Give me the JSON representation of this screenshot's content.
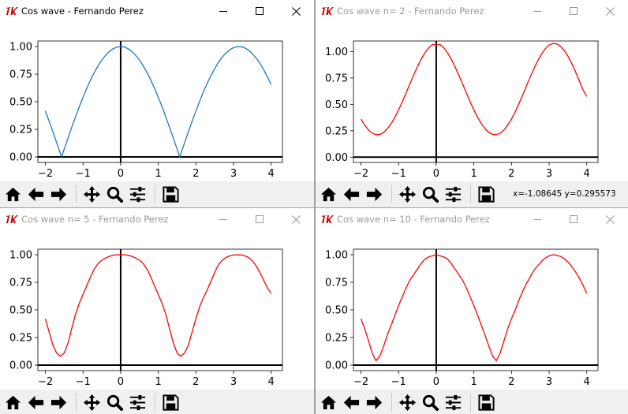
{
  "windows": [
    {
      "id": "w1",
      "title": "Cos wave - Fernando Perez",
      "active": true,
      "line_color": "#1f77b4",
      "coords": "",
      "chart_data": {
        "type": "line",
        "function": "|cos(x)|",
        "x": [
          -2.0,
          -1.9,
          -1.8,
          -1.7,
          -1.6,
          -1.5708,
          -1.5,
          -1.4,
          -1.3,
          -1.2,
          -1.1,
          -1.0,
          -0.9,
          -0.8,
          -0.7,
          -0.6,
          -0.5,
          -0.4,
          -0.3,
          -0.2,
          -0.1,
          0.0,
          0.1,
          0.2,
          0.3,
          0.4,
          0.5,
          0.6,
          0.7,
          0.8,
          0.9,
          1.0,
          1.1,
          1.2,
          1.3,
          1.4,
          1.5,
          1.5708,
          1.6,
          1.7,
          1.8,
          1.9,
          2.0,
          2.1,
          2.2,
          2.3,
          2.4,
          2.5,
          2.6,
          2.7,
          2.8,
          2.9,
          3.0,
          3.1,
          3.2,
          3.3,
          3.4,
          3.5,
          3.6,
          3.7,
          3.8,
          3.9,
          4.0
        ],
        "y": [
          0.416,
          0.323,
          0.227,
          0.129,
          0.029,
          0.0,
          0.071,
          0.17,
          0.267,
          0.362,
          0.454,
          0.54,
          0.622,
          0.697,
          0.765,
          0.825,
          0.878,
          0.921,
          0.955,
          0.98,
          0.995,
          1.0,
          0.995,
          0.98,
          0.955,
          0.921,
          0.878,
          0.825,
          0.765,
          0.697,
          0.622,
          0.54,
          0.454,
          0.362,
          0.267,
          0.17,
          0.071,
          0.0,
          0.029,
          0.129,
          0.227,
          0.323,
          0.416,
          0.505,
          0.589,
          0.666,
          0.737,
          0.801,
          0.857,
          0.904,
          0.942,
          0.971,
          0.99,
          0.999,
          0.998,
          0.987,
          0.967,
          0.936,
          0.897,
          0.848,
          0.791,
          0.726,
          0.654
        ],
        "xlim": [
          -2.2,
          4.3
        ],
        "ylim": [
          -0.05,
          1.05
        ],
        "xticks": [
          -2,
          -1,
          0,
          1,
          2,
          3,
          4
        ],
        "yticks": [
          0.0,
          0.25,
          0.5,
          0.75,
          1.0
        ],
        "xtick_labels": [
          "−2",
          "−1",
          "0",
          "1",
          "2",
          "3",
          "4"
        ],
        "ytick_labels": [
          "0.00",
          "0.25",
          "0.50",
          "0.75",
          "1.00"
        ]
      }
    },
    {
      "id": "w2",
      "title": "Cos wave n= 2 - Fernando Perez",
      "active": false,
      "line_color": "#ff0000",
      "coords": "x=-1.08645     y=0.295573",
      "chart_data": {
        "type": "line",
        "function": "Fourier series of |cos(x)|, n=2",
        "x": [
          -2.0,
          -1.9,
          -1.8,
          -1.7,
          -1.6,
          -1.5,
          -1.4,
          -1.3,
          -1.2,
          -1.1,
          -1.0,
          -0.9,
          -0.8,
          -0.7,
          -0.6,
          -0.5,
          -0.4,
          -0.3,
          -0.2,
          -0.1,
          0.0,
          0.1,
          0.2,
          0.3,
          0.4,
          0.5,
          0.6,
          0.7,
          0.8,
          0.9,
          1.0,
          1.1,
          1.2,
          1.3,
          1.4,
          1.5,
          1.6,
          1.7,
          1.8,
          1.9,
          2.0,
          2.1,
          2.2,
          2.3,
          2.4,
          2.5,
          2.6,
          2.7,
          2.8,
          2.9,
          3.0,
          3.1,
          3.2,
          3.3,
          3.4,
          3.5,
          3.6,
          3.7,
          3.8,
          3.9,
          4.0
        ],
        "y": [
          0.36,
          0.303,
          0.257,
          0.227,
          0.213,
          0.215,
          0.234,
          0.268,
          0.316,
          0.377,
          0.448,
          0.526,
          0.609,
          0.694,
          0.777,
          0.856,
          0.928,
          0.989,
          1.036,
          1.067,
          1.061,
          1.067,
          1.036,
          0.989,
          0.928,
          0.856,
          0.777,
          0.694,
          0.609,
          0.526,
          0.448,
          0.377,
          0.316,
          0.268,
          0.234,
          0.215,
          0.213,
          0.227,
          0.257,
          0.303,
          0.36,
          0.43,
          0.508,
          0.591,
          0.677,
          0.761,
          0.841,
          0.914,
          0.977,
          1.027,
          1.061,
          1.076,
          1.073,
          1.051,
          1.012,
          0.957,
          0.889,
          0.81,
          0.726,
          0.639,
          0.575
        ],
        "xlim": [
          -2.2,
          4.3
        ],
        "ylim": [
          -0.05,
          1.1
        ],
        "xticks": [
          -2,
          -1,
          0,
          1,
          2,
          3,
          4
        ],
        "yticks": [
          0.0,
          0.25,
          0.5,
          0.75,
          1.0
        ],
        "xtick_labels": [
          "−2",
          "−1",
          "0",
          "1",
          "2",
          "3",
          "4"
        ],
        "ytick_labels": [
          "0.00",
          "0.25",
          "0.50",
          "0.75",
          "1.00"
        ]
      }
    },
    {
      "id": "w3",
      "title": "Cos wave n= 5 - Fernando Perez",
      "active": false,
      "line_color": "#ff0000",
      "coords": "",
      "chart_data": {
        "type": "line",
        "function": "Fourier series of |cos(x)|, n=5",
        "x": [
          -2.0,
          -1.9,
          -1.8,
          -1.7,
          -1.6,
          -1.5,
          -1.4,
          -1.3,
          -1.2,
          -1.1,
          -1.0,
          -0.9,
          -0.8,
          -0.7,
          -0.6,
          -0.5,
          -0.4,
          -0.3,
          -0.2,
          -0.1,
          0.0,
          0.1,
          0.2,
          0.3,
          0.4,
          0.5,
          0.6,
          0.7,
          0.8,
          0.9,
          1.0,
          1.1,
          1.2,
          1.3,
          1.4,
          1.5,
          1.6,
          1.7,
          1.8,
          1.9,
          2.0,
          2.1,
          2.2,
          2.3,
          2.4,
          2.5,
          2.6,
          2.7,
          2.8,
          2.9,
          3.0,
          3.1,
          3.2,
          3.3,
          3.4,
          3.5,
          3.6,
          3.7,
          3.8,
          3.9,
          4.0
        ],
        "y": [
          0.42,
          0.3,
          0.18,
          0.11,
          0.08,
          0.11,
          0.2,
          0.33,
          0.46,
          0.56,
          0.64,
          0.72,
          0.8,
          0.87,
          0.92,
          0.95,
          0.97,
          0.985,
          0.995,
          1.0,
          0.998,
          1.0,
          0.995,
          0.985,
          0.97,
          0.95,
          0.92,
          0.87,
          0.8,
          0.72,
          0.64,
          0.56,
          0.46,
          0.33,
          0.2,
          0.11,
          0.08,
          0.11,
          0.18,
          0.3,
          0.42,
          0.53,
          0.61,
          0.68,
          0.76,
          0.84,
          0.91,
          0.95,
          0.975,
          0.99,
          0.997,
          0.999,
          0.998,
          0.99,
          0.975,
          0.945,
          0.9,
          0.84,
          0.77,
          0.7,
          0.65
        ],
        "xlim": [
          -2.2,
          4.3
        ],
        "ylim": [
          -0.05,
          1.05
        ],
        "xticks": [
          -2,
          -1,
          0,
          1,
          2,
          3,
          4
        ],
        "yticks": [
          0.0,
          0.25,
          0.5,
          0.75,
          1.0
        ],
        "xtick_labels": [
          "−2",
          "−1",
          "0",
          "1",
          "2",
          "3",
          "4"
        ],
        "ytick_labels": [
          "0.00",
          "0.25",
          "0.50",
          "0.75",
          "1.00"
        ]
      }
    },
    {
      "id": "w4",
      "title": "Cos wave n= 10 - Fernando Perez",
      "active": false,
      "line_color": "#ff0000",
      "coords": "",
      "chart_data": {
        "type": "line",
        "function": "Fourier series of |cos(x)|, n=10",
        "x": [
          -2.0,
          -1.9,
          -1.8,
          -1.7,
          -1.6,
          -1.5,
          -1.4,
          -1.3,
          -1.2,
          -1.1,
          -1.0,
          -0.9,
          -0.8,
          -0.7,
          -0.6,
          -0.5,
          -0.4,
          -0.3,
          -0.2,
          -0.1,
          0.0,
          0.1,
          0.2,
          0.3,
          0.4,
          0.5,
          0.6,
          0.7,
          0.8,
          0.9,
          1.0,
          1.1,
          1.2,
          1.3,
          1.4,
          1.5,
          1.6,
          1.7,
          1.8,
          1.9,
          2.0,
          2.1,
          2.2,
          2.3,
          2.4,
          2.5,
          2.6,
          2.7,
          2.8,
          2.9,
          3.0,
          3.1,
          3.2,
          3.3,
          3.4,
          3.5,
          3.6,
          3.7,
          3.8,
          3.9,
          4.0
        ],
        "y": [
          0.42,
          0.33,
          0.22,
          0.11,
          0.04,
          0.08,
          0.17,
          0.27,
          0.36,
          0.45,
          0.54,
          0.62,
          0.7,
          0.77,
          0.82,
          0.87,
          0.92,
          0.96,
          0.98,
          0.99,
          1.0,
          0.99,
          0.98,
          0.96,
          0.92,
          0.87,
          0.82,
          0.77,
          0.7,
          0.62,
          0.54,
          0.45,
          0.36,
          0.27,
          0.17,
          0.08,
          0.04,
          0.11,
          0.22,
          0.33,
          0.42,
          0.5,
          0.59,
          0.67,
          0.74,
          0.8,
          0.86,
          0.9,
          0.94,
          0.97,
          0.99,
          1.0,
          0.995,
          0.985,
          0.965,
          0.935,
          0.895,
          0.845,
          0.79,
          0.725,
          0.65
        ],
        "xlim": [
          -2.2,
          4.3
        ],
        "ylim": [
          -0.05,
          1.05
        ],
        "xticks": [
          -2,
          -1,
          0,
          1,
          2,
          3,
          4
        ],
        "yticks": [
          0.0,
          0.25,
          0.5,
          0.75,
          1.0
        ],
        "xtick_labels": [
          "−2",
          "−1",
          "0",
          "1",
          "2",
          "3",
          "4"
        ],
        "ytick_labels": [
          "0.00",
          "0.25",
          "0.50",
          "0.75",
          "1.00"
        ]
      }
    }
  ],
  "toolbar_icons": [
    "home-icon",
    "back-arrow-icon",
    "forward-arrow-icon",
    "pan-icon",
    "zoom-icon",
    "configure-subplots-icon",
    "save-icon"
  ]
}
